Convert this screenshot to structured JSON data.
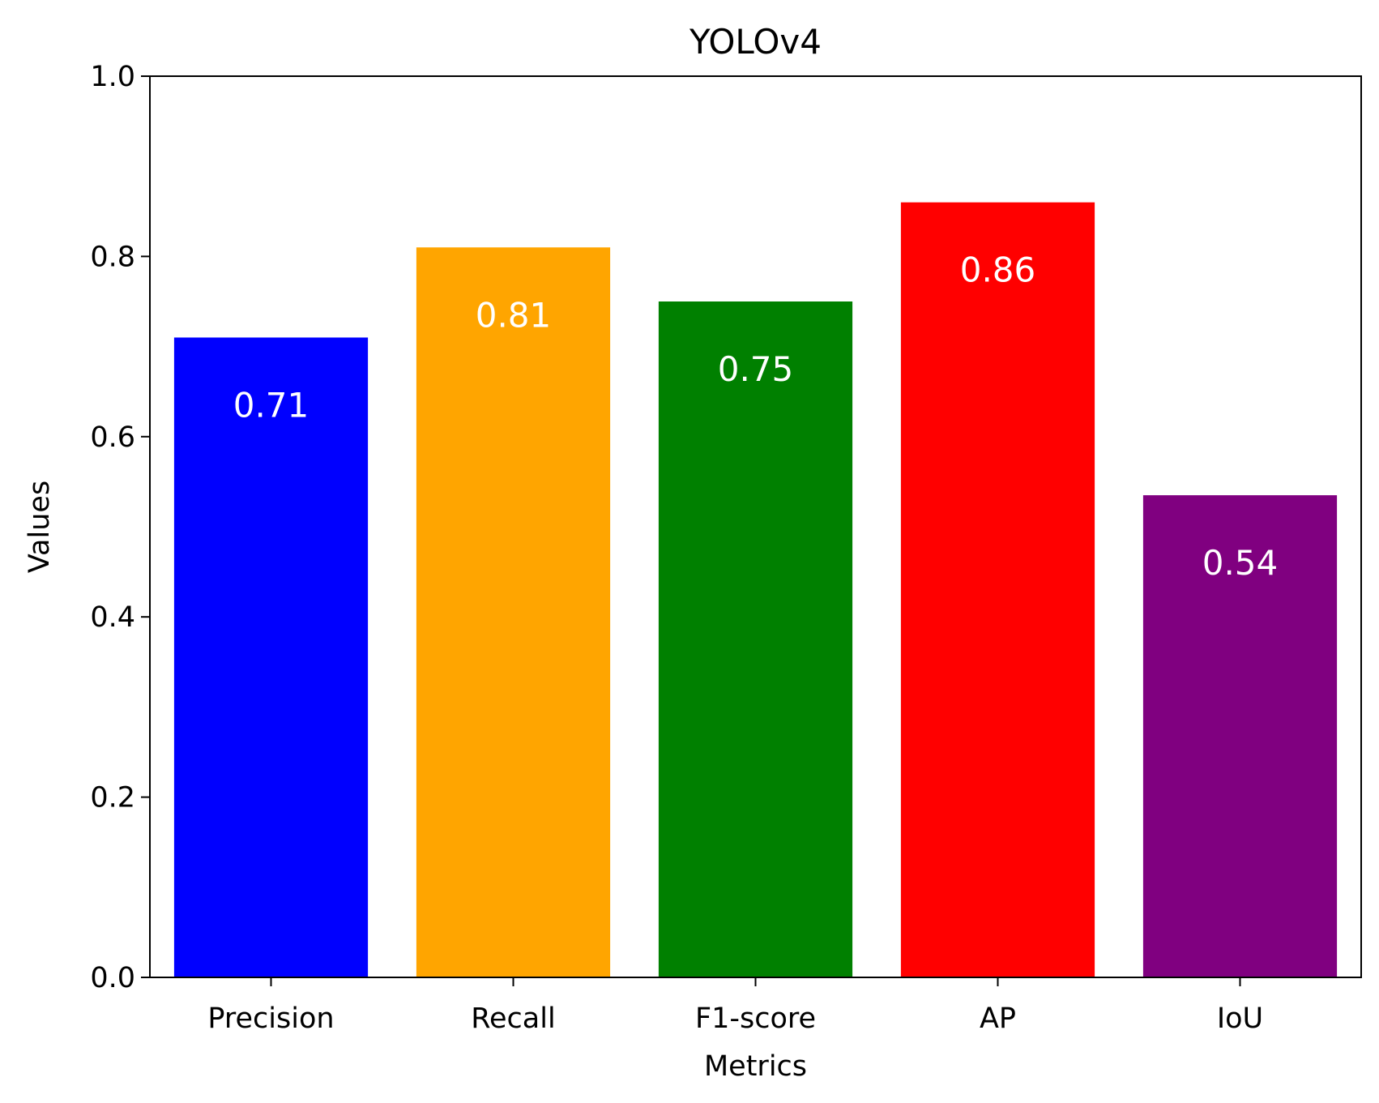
{
  "chart_data": {
    "type": "bar",
    "title": "YOLOv4",
    "xlabel": "Metrics",
    "ylabel": "Values",
    "categories": [
      "Precision",
      "Recall",
      "F1-score",
      "AP",
      "IoU"
    ],
    "values": [
      0.71,
      0.81,
      0.75,
      0.86,
      0.535
    ],
    "value_labels": [
      "0.71",
      "0.81",
      "0.75",
      "0.86",
      "0.54"
    ],
    "colors": [
      "#0000ff",
      "#ffa500",
      "#008000",
      "#ff0000",
      "#800080"
    ],
    "ylim": [
      0,
      1.0
    ],
    "yticks": [
      0.0,
      0.2,
      0.4,
      0.6,
      0.8,
      1.0
    ],
    "ytick_labels": [
      "0.0",
      "0.2",
      "0.4",
      "0.6",
      "0.8",
      "1.0"
    ],
    "grid": false,
    "legend": false
  }
}
